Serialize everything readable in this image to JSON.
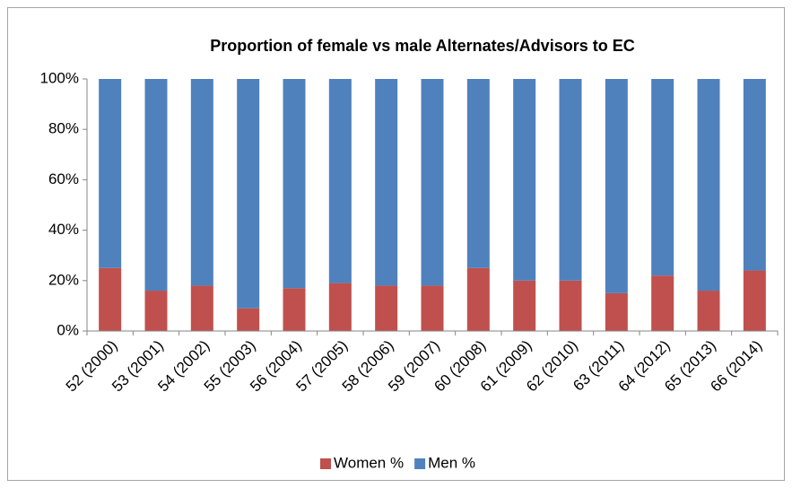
{
  "chart_data": {
    "type": "stacked-bar-100",
    "title": "Proportion of female vs male Alternates/Advisors to EC",
    "categories": [
      "52 (2000)",
      "53 (2001)",
      "54 (2002)",
      "55 (2003)",
      "56 (2004)",
      "57 (2005)",
      "58 (2006)",
      "59 (2007)",
      "60 (2008)",
      "61 (2009)",
      "62 (2010)",
      "63 (2011)",
      "64 (2012)",
      "65 (2013)",
      "66 (2014)"
    ],
    "series": [
      {
        "name": "Women %",
        "color": "#c0504d",
        "values": [
          25,
          16,
          18,
          9,
          17,
          19,
          18,
          18,
          25,
          20,
          20,
          15,
          22,
          16,
          24
        ]
      },
      {
        "name": "Men %",
        "color": "#4f81bd",
        "values": [
          75,
          84,
          82,
          91,
          83,
          81,
          82,
          82,
          75,
          80,
          80,
          85,
          78,
          84,
          76
        ]
      }
    ],
    "ylim": [
      0,
      100
    ],
    "yticks": [
      {
        "value": 0,
        "label": "0%"
      },
      {
        "value": 20,
        "label": "20%"
      },
      {
        "value": 40,
        "label": "40%"
      },
      {
        "value": 60,
        "label": "60%"
      },
      {
        "value": 80,
        "label": "80%"
      },
      {
        "value": 100,
        "label": "100%"
      }
    ],
    "grid": false,
    "legend": "bottom"
  }
}
